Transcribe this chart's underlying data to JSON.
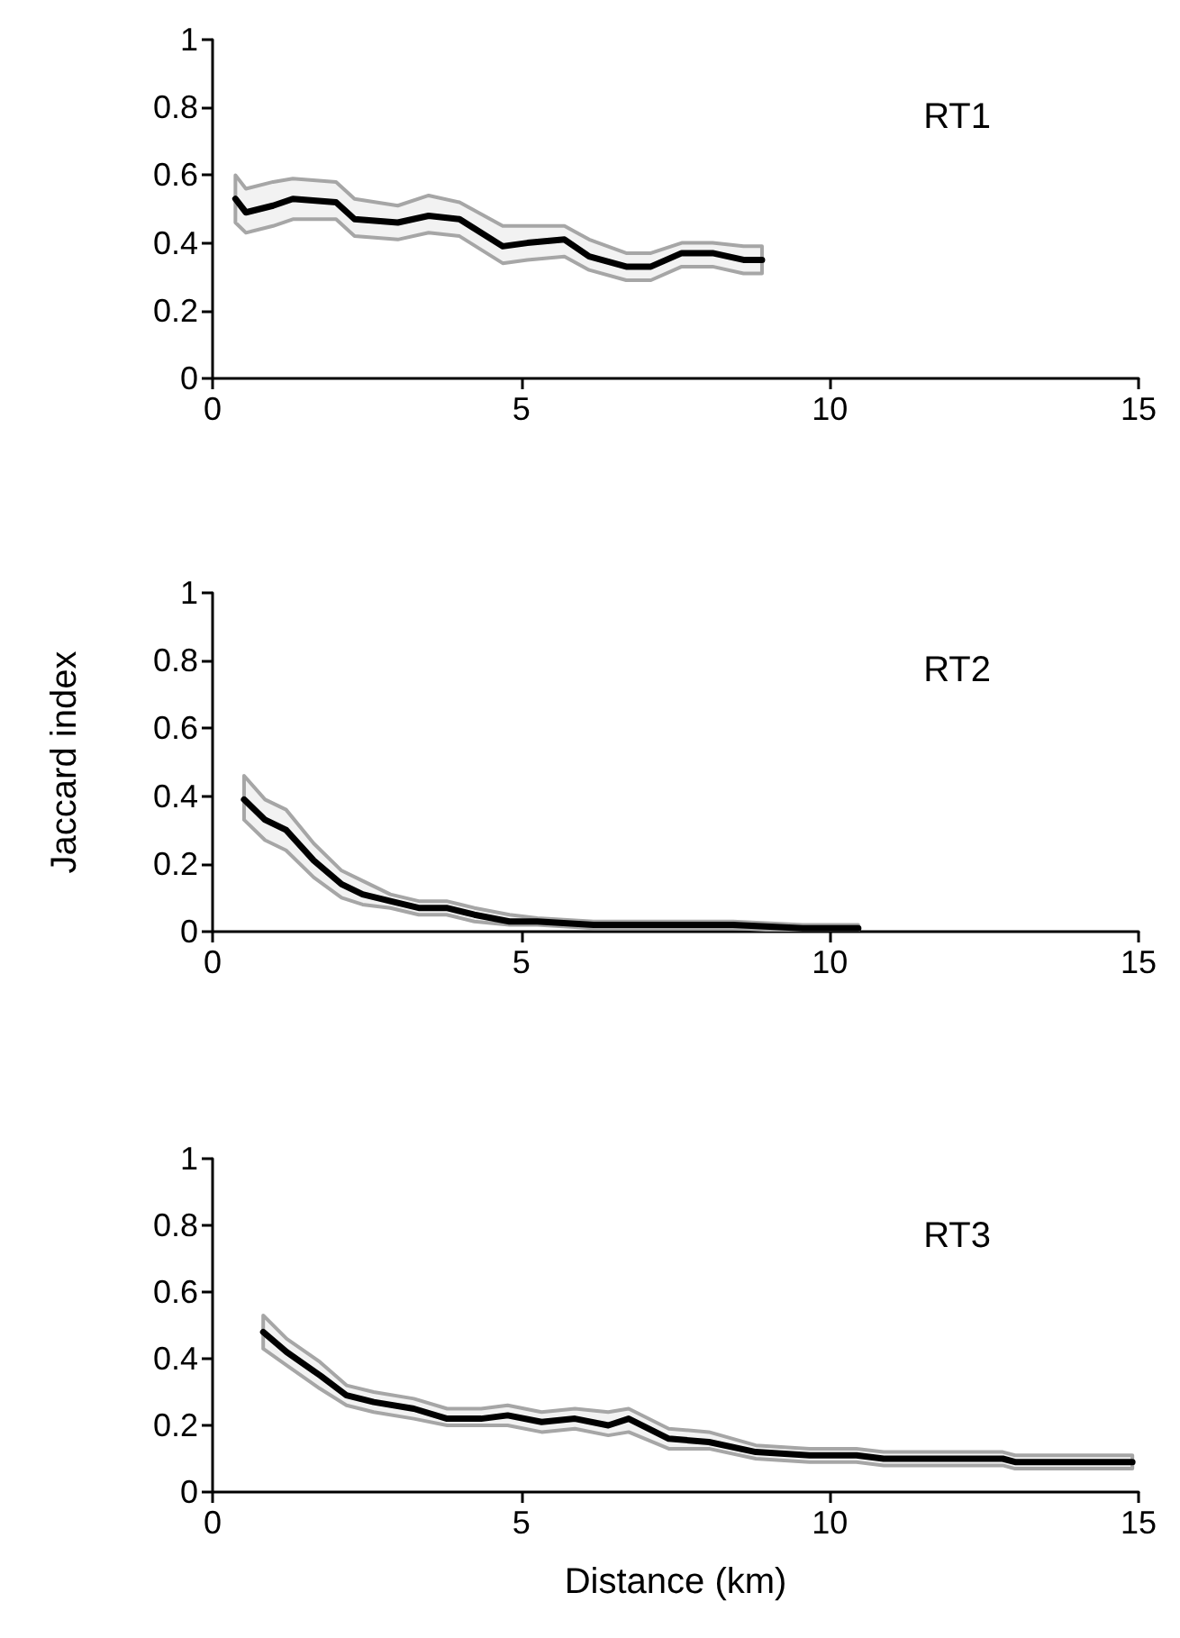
{
  "chart_data": [
    {
      "type": "line",
      "title": "RT1",
      "marker": "none",
      "xlim": [
        0,
        15
      ],
      "xticks": [
        0,
        5,
        10,
        15
      ],
      "ylim": [
        0,
        1
      ],
      "yticks": [
        0,
        0.2,
        0.4,
        0.6,
        0.8,
        1
      ],
      "x": [
        0.37,
        0.54,
        0.98,
        1.3,
        2.0,
        2.3,
        3.0,
        3.5,
        4.0,
        4.7,
        5.1,
        5.7,
        6.1,
        6.7,
        7.1,
        7.6,
        8.1,
        8.6,
        8.9
      ],
      "series": [
        {
          "color": "#000000",
          "values": [
            0.53,
            0.49,
            0.51,
            0.53,
            0.52,
            0.47,
            0.46,
            0.48,
            0.47,
            0.39,
            0.4,
            0.41,
            0.36,
            0.33,
            0.33,
            0.37,
            0.37,
            0.35,
            0.35
          ],
          "lower": [
            0.46,
            0.43,
            0.45,
            0.47,
            0.47,
            0.42,
            0.41,
            0.43,
            0.42,
            0.34,
            0.35,
            0.36,
            0.32,
            0.29,
            0.29,
            0.33,
            0.33,
            0.31,
            0.31
          ],
          "upper": [
            0.6,
            0.56,
            0.58,
            0.59,
            0.58,
            0.53,
            0.51,
            0.54,
            0.52,
            0.45,
            0.45,
            0.45,
            0.41,
            0.37,
            0.37,
            0.4,
            0.4,
            0.39,
            0.39
          ]
        }
      ]
    },
    {
      "type": "line",
      "title": "RT2",
      "ylabel": "Jaccard index",
      "marker": "none",
      "xlim": [
        0,
        15
      ],
      "xticks": [
        0,
        5,
        10,
        15
      ],
      "ylim": [
        0,
        1
      ],
      "yticks": [
        0,
        0.2,
        0.4,
        0.6,
        0.8,
        1
      ],
      "x": [
        0.51,
        0.85,
        1.19,
        1.64,
        2.09,
        2.43,
        2.88,
        3.34,
        3.79,
        4.24,
        4.81,
        5.26,
        6.17,
        7.3,
        8.43,
        9.56,
        10.46
      ],
      "series": [
        {
          "color": "#000000",
          "values": [
            0.39,
            0.33,
            0.3,
            0.21,
            0.14,
            0.11,
            0.09,
            0.07,
            0.07,
            0.05,
            0.03,
            0.03,
            0.02,
            0.02,
            0.02,
            0.01,
            0.01
          ],
          "lower": [
            0.33,
            0.27,
            0.24,
            0.16,
            0.1,
            0.08,
            0.07,
            0.05,
            0.05,
            0.03,
            0.02,
            0.02,
            0.01,
            0.01,
            0.01,
            0.0,
            0.0
          ],
          "upper": [
            0.46,
            0.39,
            0.36,
            0.26,
            0.18,
            0.15,
            0.11,
            0.09,
            0.09,
            0.07,
            0.05,
            0.04,
            0.03,
            0.03,
            0.03,
            0.02,
            0.02
          ]
        }
      ]
    },
    {
      "type": "line",
      "title": "RT3",
      "xlabel": "Distance (km)",
      "marker": "none",
      "xlim": [
        0,
        15
      ],
      "xticks": [
        0,
        5,
        10,
        15
      ],
      "ylim": [
        0,
        1
      ],
      "yticks": [
        0,
        0.2,
        0.4,
        0.6,
        0.8,
        1
      ],
      "x": [
        0.82,
        1.2,
        1.74,
        2.17,
        2.61,
        3.26,
        3.8,
        4.35,
        4.78,
        5.33,
        5.87,
        6.41,
        6.74,
        7.39,
        8.04,
        8.8,
        9.67,
        10.43,
        10.87,
        12.8,
        13.0,
        14.9
      ],
      "series": [
        {
          "color": "#000000",
          "values": [
            0.48,
            0.42,
            0.35,
            0.29,
            0.27,
            0.25,
            0.22,
            0.22,
            0.23,
            0.21,
            0.22,
            0.2,
            0.22,
            0.16,
            0.15,
            0.12,
            0.11,
            0.11,
            0.1,
            0.1,
            0.09,
            0.09
          ],
          "lower": [
            0.43,
            0.38,
            0.31,
            0.26,
            0.24,
            0.22,
            0.2,
            0.2,
            0.2,
            0.18,
            0.19,
            0.17,
            0.18,
            0.13,
            0.13,
            0.1,
            0.09,
            0.09,
            0.08,
            0.08,
            0.07,
            0.07
          ],
          "upper": [
            0.53,
            0.46,
            0.39,
            0.32,
            0.3,
            0.28,
            0.25,
            0.25,
            0.26,
            0.24,
            0.25,
            0.24,
            0.25,
            0.19,
            0.18,
            0.14,
            0.13,
            0.13,
            0.12,
            0.12,
            0.11,
            0.11
          ]
        }
      ]
    }
  ]
}
